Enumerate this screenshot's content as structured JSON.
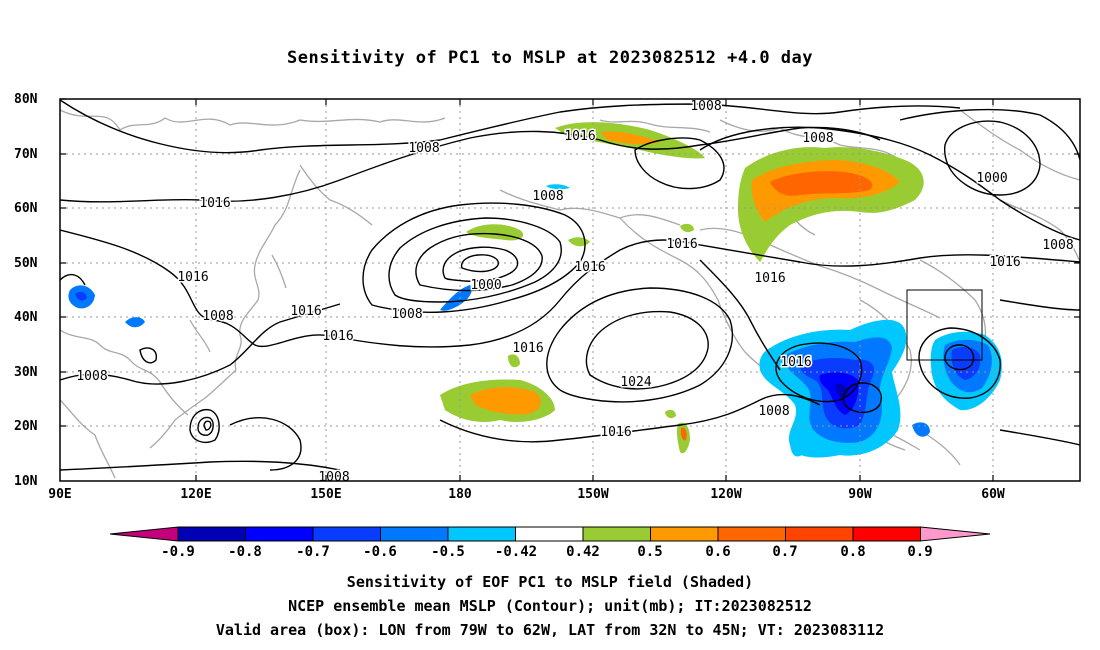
{
  "title": "Sensitivity of PC1 to MSLP at 2023082512 +4.0 day",
  "lat_labels": [
    "80N",
    "70N",
    "60N",
    "50N",
    "40N",
    "30N",
    "20N",
    "10N"
  ],
  "lon_labels": [
    "90E",
    "120E",
    "150E",
    "180",
    "150W",
    "120W",
    "90W",
    "60W"
  ],
  "colorbar": {
    "labels": [
      "-0.9",
      "-0.8",
      "-0.7",
      "-0.6",
      "-0.5",
      "-0.42",
      "0.42",
      "0.5",
      "0.6",
      "0.7",
      "0.8",
      "0.9"
    ],
    "colors": [
      "#c3007a",
      "#0000b4",
      "#0000ff",
      "#0a3cff",
      "#0078ff",
      "#00c8ff",
      "#ffffff",
      "#99cc33",
      "#ff9900",
      "#ff6600",
      "#ff4400",
      "#ff0000",
      "#ff99cc"
    ]
  },
  "contour_labels": [
    "1008",
    "1016",
    "1000",
    "1024"
  ],
  "captions": [
    "Sensitivity of EOF PC1 to MSLP field (Shaded)",
    "NCEP ensemble mean MSLP (Contour); unit(mb); IT:2023082512",
    "Valid area (box): LON from 79W to 62W, LAT from 32N to 45N; VT: 2023083112"
  ],
  "valid_box": {
    "lon_west": -79,
    "lon_east": -62,
    "lat_south": 32,
    "lat_north": 45
  }
}
